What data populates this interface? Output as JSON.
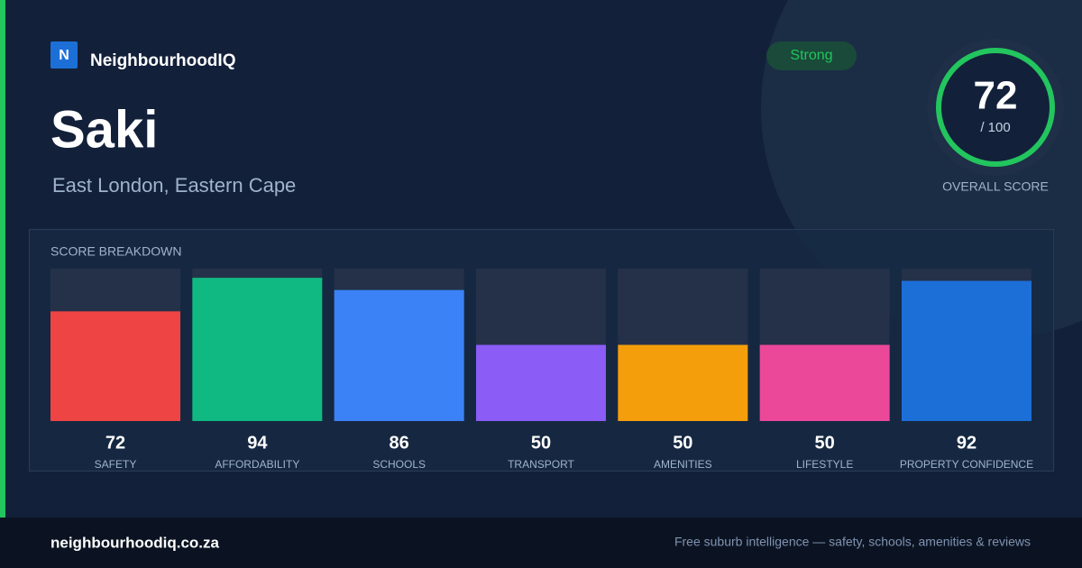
{
  "brand": {
    "logo": "N",
    "name": "NeighbourhoodIQ"
  },
  "header": {
    "title": "Saki",
    "subtitle": "East London, Eastern Cape",
    "badge": "Strong"
  },
  "overall": {
    "score": "72",
    "max": "/ 100",
    "label": "OVERALL SCORE"
  },
  "chart_data": {
    "type": "bar",
    "title": "SCORE BREAKDOWN",
    "categories": [
      "SAFETY",
      "AFFORDABILITY",
      "SCHOOLS",
      "TRANSPORT",
      "AMENITIES",
      "LIFESTYLE",
      "PROPERTY CONFIDENCE"
    ],
    "values": [
      72,
      94,
      86,
      50,
      50,
      50,
      92
    ],
    "colors": [
      "#ef4444",
      "#10b981",
      "#3b82f6",
      "#8b5cf6",
      "#f59e0b",
      "#ec4899",
      "#1d6fd8"
    ],
    "ylim": [
      0,
      100
    ]
  },
  "footer": {
    "site": "neighbourhoodiq.co.za",
    "tagline": "Free suburb intelligence — safety, schools, amenities & reviews"
  }
}
